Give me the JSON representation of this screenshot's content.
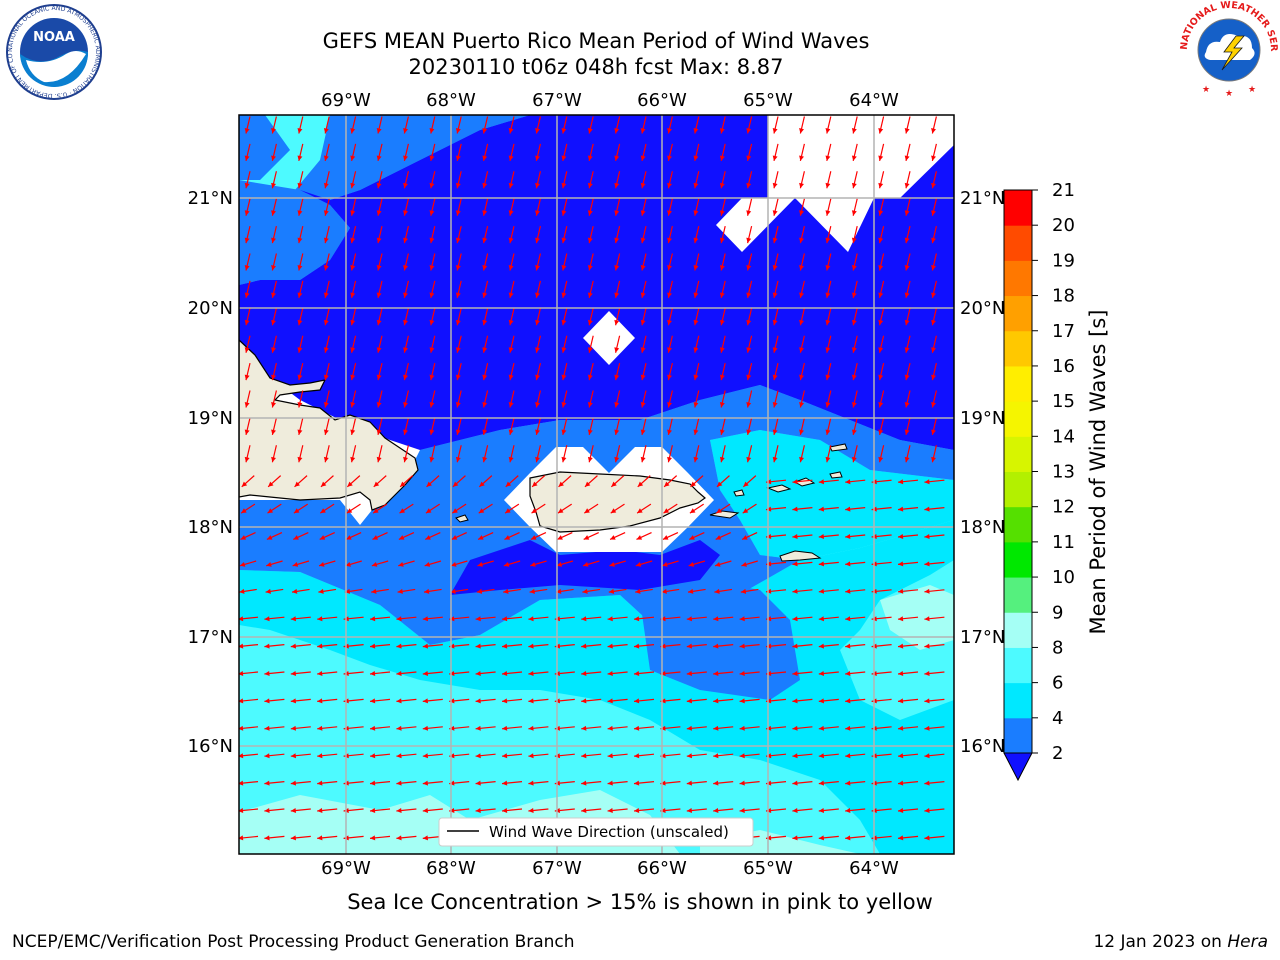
{
  "header": {
    "title_line1": "GEFS MEAN Puerto Rico Mean Period of Wind Waves",
    "title_line2": "20230110 t06z 048h fcst   Max: 8.87"
  },
  "logos": {
    "noaa_text": "NOAA",
    "noaa_ring": "NATIONAL OCEANIC AND ATMOSPHERIC ADMINISTRATION · U.S. DEPARTMENT OF COMMERCE",
    "nws_ring": "NATIONAL WEATHER SERVICE"
  },
  "map": {
    "lon_labels": [
      "69°W",
      "68°W",
      "67°W",
      "66°W",
      "65°W",
      "64°W"
    ],
    "lat_labels": [
      "21°N",
      "20°N",
      "19°N",
      "18°N",
      "17°N",
      "16°N"
    ],
    "legend_label": "Wind Wave Direction (unscaled)",
    "arrow_color": "#ff0000",
    "land_color": "#efecdc",
    "missing_color": "#ffffff"
  },
  "colorbar": {
    "label": "Mean Period of Wind Waves [s]",
    "ticks": [
      "2",
      "4",
      "6",
      "8",
      "9",
      "10",
      "11",
      "12",
      "13",
      "14",
      "15",
      "16",
      "17",
      "18",
      "19",
      "20",
      "21"
    ],
    "colors": [
      "#1a7dff",
      "#00e8ff",
      "#4dfaff",
      "#a5fff5",
      "#55f07e",
      "#00e800",
      "#55e000",
      "#b3f000",
      "#d7f500",
      "#f5f500",
      "#ffee00",
      "#ffc800",
      "#ffa000",
      "#ff7800",
      "#ff4b00",
      "#ff0000"
    ],
    "under_color": "#1010ff"
  },
  "footer": {
    "note": "Sea Ice Concentration > 15% is shown in pink to yellow",
    "branch": "NCEP/EMC/Verification Post Processing Product Generation Branch",
    "date": "12 Jan 2023 on",
    "host": "Hera"
  }
}
